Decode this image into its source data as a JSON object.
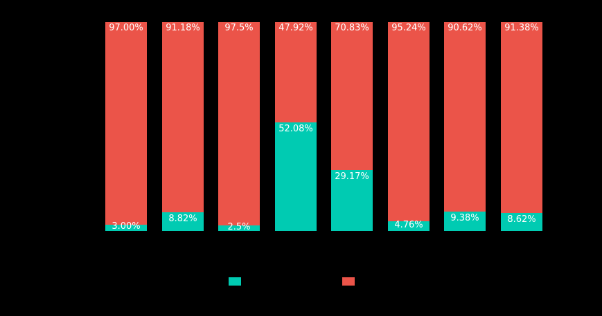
{
  "chart_data": {
    "type": "bar",
    "subtype": "stacked-percentage-column",
    "title": "",
    "xlabel": "",
    "ylabel": "",
    "ylim": [
      0,
      100
    ],
    "background_color": "#000000",
    "bar_label_color": "#ffffff",
    "num_bars": 8,
    "legend_position": "bottom-center",
    "series": [
      {
        "name": "teal-bottom-segment",
        "color": "#00CBB2",
        "values": [
          3.0,
          8.82,
          2.5,
          52.08,
          29.17,
          4.76,
          9.38,
          8.62
        ],
        "labels": [
          "3.00%",
          "8.82%",
          "2.5%",
          "52.08%",
          "29.17%",
          "4.76%",
          "9.38%",
          "8.62%"
        ]
      },
      {
        "name": "red-top-segment",
        "color": "#EB5449",
        "values": [
          97.0,
          91.18,
          97.5,
          47.92,
          70.83,
          95.24,
          90.62,
          91.38
        ],
        "labels": [
          "97.00%",
          "91.18%",
          "97.5%",
          "47.92%",
          "70.83%",
          "95.24%",
          "90.62%",
          "91.38%"
        ]
      }
    ],
    "legend": {
      "swatches": [
        {
          "name": "teal-series-swatch",
          "color": "#00CBB2"
        },
        {
          "name": "red-series-swatch",
          "color": "#EB5449"
        }
      ]
    }
  }
}
